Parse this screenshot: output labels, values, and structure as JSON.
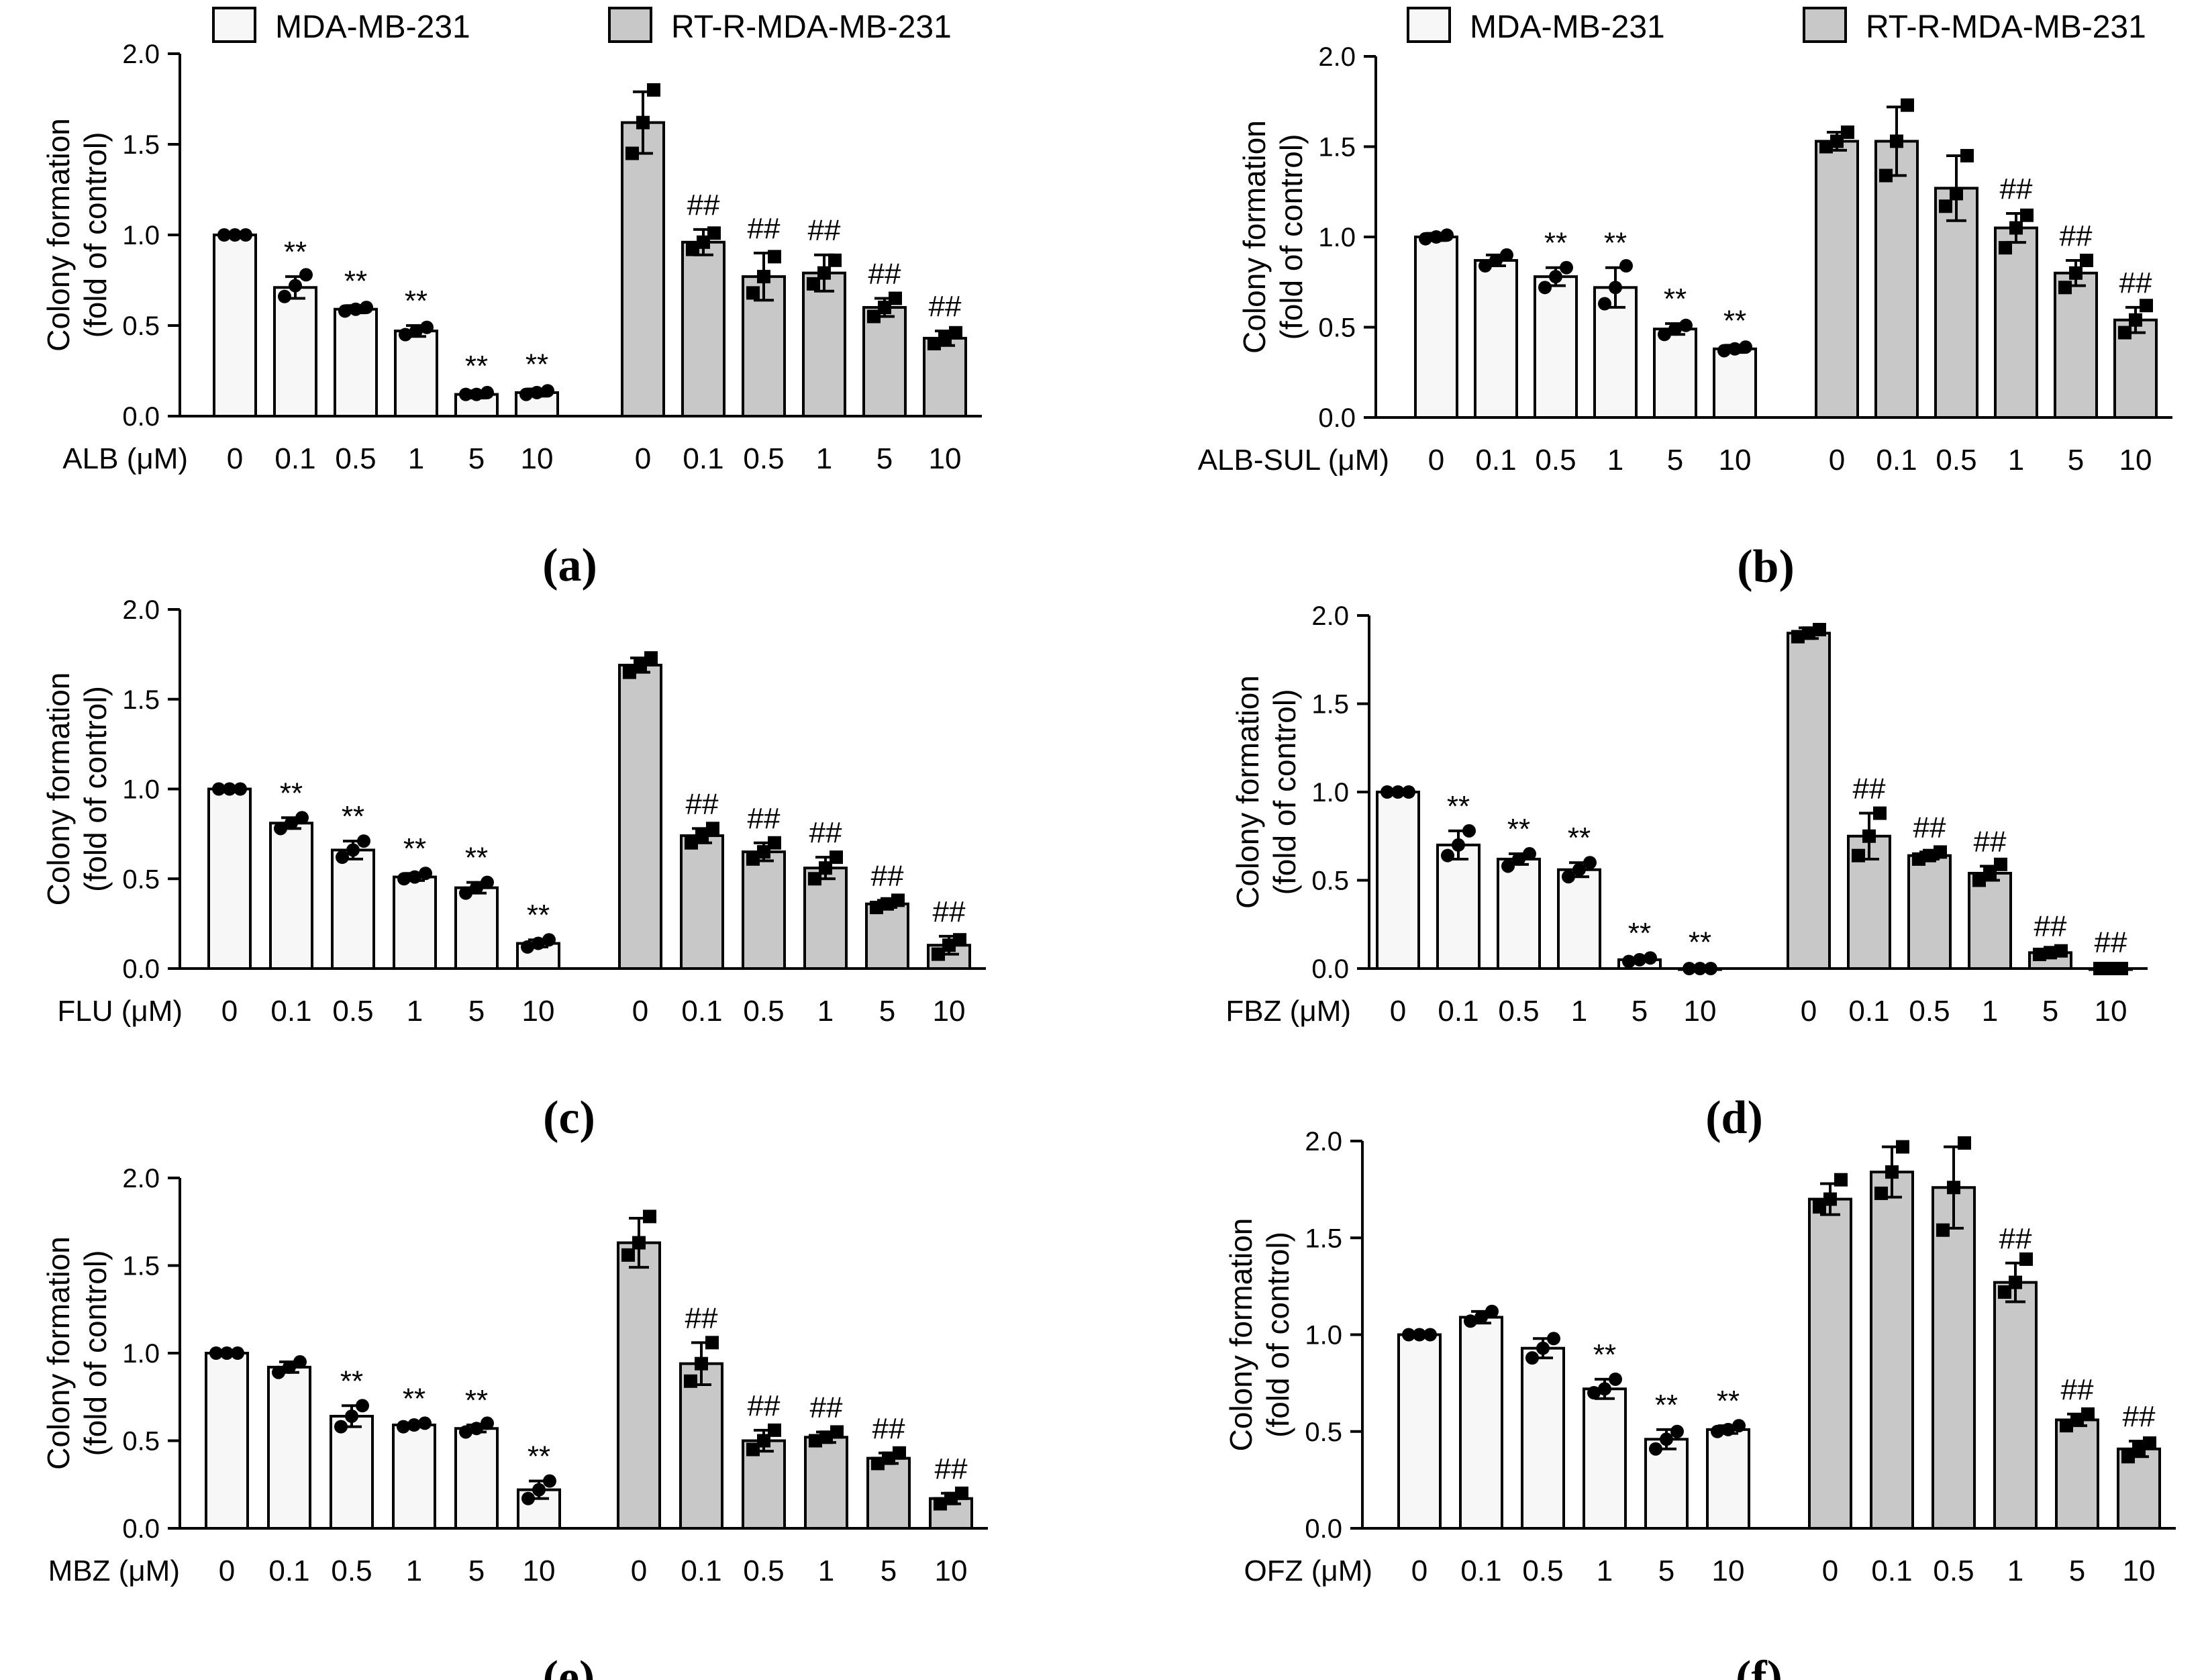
{
  "colors": {
    "mda_fill": "#f7f7f7",
    "rtr_fill": "#c8c8c8",
    "stroke": "#000000"
  },
  "legend": [
    {
      "label": "MDA-MB-231",
      "fill": "#f7f7f7"
    },
    {
      "label": "RT-R-MDA-MB-231",
      "fill": "#c8c8c8"
    }
  ],
  "chart_data": [
    {
      "type": "bar",
      "panel": "(a)",
      "xlabel": "ALB (μM)",
      "ylabel": [
        "Colony formation",
        "(fold of control)"
      ],
      "ylim": [
        0,
        2.0
      ],
      "yticks": [
        "0.0",
        "0.5",
        "1.0",
        "1.5",
        "2.0"
      ],
      "categories": [
        "0",
        "0.1",
        "0.5",
        "1",
        "5",
        "10"
      ],
      "series": [
        {
          "name": "MDA-MB-231",
          "values": [
            1.0,
            0.71,
            0.59,
            0.47,
            0.12,
            0.13
          ],
          "err": [
            0.01,
            0.06,
            0.02,
            0.03,
            0.02,
            0.02
          ],
          "points": [
            [
              1.0,
              1.0,
              1.0
            ],
            [
              0.66,
              0.72,
              0.78
            ],
            [
              0.58,
              0.59,
              0.6
            ],
            [
              0.45,
              0.47,
              0.49
            ],
            [
              0.12,
              0.12,
              0.13
            ],
            [
              0.12,
              0.13,
              0.14
            ]
          ],
          "marks": [
            "",
            "**",
            "**",
            "**",
            "**",
            "**"
          ]
        },
        {
          "name": "RT-R-MDA-MB-231",
          "values": [
            1.62,
            0.96,
            0.77,
            0.79,
            0.6,
            0.43
          ],
          "err": [
            0.17,
            0.07,
            0.13,
            0.1,
            0.05,
            0.04
          ],
          "points": [
            [
              1.45,
              1.62,
              1.8
            ],
            [
              0.92,
              0.96,
              1.01
            ],
            [
              0.68,
              0.77,
              0.88
            ],
            [
              0.73,
              0.79,
              0.86
            ],
            [
              0.55,
              0.6,
              0.65
            ],
            [
              0.4,
              0.43,
              0.46
            ]
          ],
          "marks": [
            "",
            "##",
            "##",
            "##",
            "##",
            "##"
          ]
        }
      ]
    },
    {
      "type": "bar",
      "panel": "(b)",
      "xlabel": "ALB-SUL (μM)",
      "ylabel": [
        "Colony formation",
        "(fold of control)"
      ],
      "ylim": [
        0,
        2.0
      ],
      "yticks": [
        "0.0",
        "0.5",
        "1.0",
        "1.5",
        "2.0"
      ],
      "categories": [
        "0",
        "0.1",
        "0.5",
        "1",
        "5",
        "10"
      ],
      "series": [
        {
          "name": "MDA-MB-231",
          "values": [
            1.0,
            0.87,
            0.78,
            0.72,
            0.49,
            0.38
          ],
          "err": [
            0.02,
            0.03,
            0.05,
            0.11,
            0.03,
            0.02
          ],
          "points": [
            [
              0.99,
              1.0,
              1.01
            ],
            [
              0.84,
              0.87,
              0.9
            ],
            [
              0.72,
              0.78,
              0.83
            ],
            [
              0.63,
              0.72,
              0.84
            ],
            [
              0.46,
              0.49,
              0.51
            ],
            [
              0.37,
              0.38,
              0.39
            ]
          ],
          "marks": [
            "",
            "",
            "**",
            "**",
            "**",
            "**"
          ]
        },
        {
          "name": "RT-R-MDA-MB-231",
          "values": [
            1.53,
            1.53,
            1.27,
            1.05,
            0.8,
            0.54
          ],
          "err": [
            0.05,
            0.19,
            0.18,
            0.08,
            0.07,
            0.07
          ],
          "points": [
            [
              1.5,
              1.53,
              1.58
            ],
            [
              1.34,
              1.53,
              1.73
            ],
            [
              1.17,
              1.24,
              1.45
            ],
            [
              0.94,
              1.05,
              1.12
            ],
            [
              0.72,
              0.8,
              0.87
            ],
            [
              0.47,
              0.54,
              0.62
            ]
          ],
          "marks": [
            "",
            "",
            "",
            "##",
            "##",
            "##"
          ]
        }
      ]
    },
    {
      "type": "bar",
      "panel": "(c)",
      "xlabel": "FLU (μM)",
      "ylabel": [
        "Colony formation",
        "(fold of control)"
      ],
      "ylim": [
        0,
        2.0
      ],
      "yticks": [
        "0.0",
        "0.5",
        "1.0",
        "1.5",
        "2.0"
      ],
      "categories": [
        "0",
        "0.1",
        "0.5",
        "1",
        "5",
        "10"
      ],
      "series": [
        {
          "name": "MDA-MB-231",
          "values": [
            1.0,
            0.81,
            0.66,
            0.51,
            0.45,
            0.14
          ],
          "err": [
            0.01,
            0.03,
            0.05,
            0.02,
            0.03,
            0.02
          ],
          "points": [
            [
              1.0,
              1.0,
              1.0
            ],
            [
              0.78,
              0.81,
              0.84
            ],
            [
              0.62,
              0.66,
              0.71
            ],
            [
              0.5,
              0.51,
              0.53
            ],
            [
              0.42,
              0.45,
              0.48
            ],
            [
              0.12,
              0.14,
              0.16
            ]
          ],
          "marks": [
            "",
            "**",
            "**",
            "**",
            "**",
            "**"
          ]
        },
        {
          "name": "RT-R-MDA-MB-231",
          "values": [
            1.69,
            0.74,
            0.65,
            0.56,
            0.36,
            0.13
          ],
          "err": [
            0.04,
            0.04,
            0.05,
            0.06,
            0.02,
            0.05
          ],
          "points": [
            [
              1.65,
              1.69,
              1.73
            ],
            [
              0.7,
              0.74,
              0.78
            ],
            [
              0.61,
              0.65,
              0.7
            ],
            [
              0.5,
              0.56,
              0.62
            ],
            [
              0.34,
              0.36,
              0.38
            ],
            [
              0.08,
              0.13,
              0.16
            ]
          ],
          "marks": [
            "",
            "##",
            "##",
            "##",
            "##",
            "##"
          ]
        }
      ]
    },
    {
      "type": "bar",
      "panel": "(d)",
      "xlabel": "FBZ (μM)",
      "ylabel": [
        "Colony formation",
        "(fold of control)"
      ],
      "ylim": [
        0,
        2.0
      ],
      "yticks": [
        "0.0",
        "0.5",
        "1.0",
        "1.5",
        "2.0"
      ],
      "categories": [
        "0",
        "0.1",
        "0.5",
        "1",
        "5",
        "10"
      ],
      "series": [
        {
          "name": "MDA-MB-231",
          "values": [
            1.0,
            0.7,
            0.62,
            0.56,
            0.05,
            0.0
          ],
          "err": [
            0.01,
            0.08,
            0.03,
            0.04,
            0.01,
            0.01
          ],
          "points": [
            [
              1.0,
              1.0,
              1.0
            ],
            [
              0.64,
              0.7,
              0.78
            ],
            [
              0.58,
              0.62,
              0.65
            ],
            [
              0.52,
              0.56,
              0.6
            ],
            [
              0.04,
              0.05,
              0.06
            ],
            [
              0.0,
              0.0,
              0.0
            ]
          ],
          "marks": [
            "",
            "**",
            "**",
            "**",
            "**",
            "**"
          ]
        },
        {
          "name": "RT-R-MDA-MB-231",
          "values": [
            1.9,
            0.75,
            0.64,
            0.54,
            0.09,
            0.0
          ],
          "err": [
            0.03,
            0.13,
            0.02,
            0.04,
            0.01,
            0.01
          ],
          "points": [
            [
              1.88,
              1.9,
              1.92
            ],
            [
              0.64,
              0.75,
              0.88
            ],
            [
              0.62,
              0.64,
              0.66
            ],
            [
              0.5,
              0.54,
              0.59
            ],
            [
              0.08,
              0.09,
              0.1
            ],
            [
              0.0,
              0.0,
              0.0
            ]
          ],
          "marks": [
            "",
            "##",
            "##",
            "##",
            "##",
            "##"
          ]
        }
      ]
    },
    {
      "type": "bar",
      "panel": "(e)",
      "xlabel": "MBZ (μM)",
      "ylabel": [
        "Colony formation",
        "(fold of control)"
      ],
      "ylim": [
        0,
        2.0
      ],
      "yticks": [
        "0.0",
        "0.5",
        "1.0",
        "1.5",
        "2.0"
      ],
      "categories": [
        "0",
        "0.1",
        "0.5",
        "1",
        "5",
        "10"
      ],
      "series": [
        {
          "name": "MDA-MB-231",
          "values": [
            1.0,
            0.92,
            0.64,
            0.59,
            0.57,
            0.22
          ],
          "err": [
            0.01,
            0.03,
            0.06,
            0.01,
            0.02,
            0.05
          ],
          "points": [
            [
              1.0,
              1.0,
              1.0
            ],
            [
              0.89,
              0.92,
              0.95
            ],
            [
              0.58,
              0.64,
              0.7
            ],
            [
              0.58,
              0.59,
              0.6
            ],
            [
              0.55,
              0.57,
              0.6
            ],
            [
              0.17,
              0.22,
              0.27
            ]
          ],
          "marks": [
            "",
            "",
            "**",
            "**",
            "**",
            "**"
          ]
        },
        {
          "name": "RT-R-MDA-MB-231",
          "values": [
            1.63,
            0.94,
            0.5,
            0.52,
            0.4,
            0.17
          ],
          "err": [
            0.14,
            0.12,
            0.06,
            0.03,
            0.03,
            0.03
          ],
          "points": [
            [
              1.56,
              1.63,
              1.78
            ],
            [
              0.84,
              0.94,
              1.06
            ],
            [
              0.45,
              0.5,
              0.56
            ],
            [
              0.5,
              0.52,
              0.55
            ],
            [
              0.37,
              0.4,
              0.43
            ],
            [
              0.14,
              0.17,
              0.2
            ]
          ],
          "marks": [
            "",
            "##",
            "##",
            "##",
            "##",
            "##"
          ]
        }
      ]
    },
    {
      "type": "bar",
      "panel": "(f)",
      "xlabel": "OFZ (μM)",
      "ylabel": [
        "Colony formation",
        "(fold of control)"
      ],
      "ylim": [
        0,
        2.0
      ],
      "yticks": [
        "0.0",
        "0.5",
        "1.0",
        "1.5",
        "2.0"
      ],
      "categories": [
        "0",
        "0.1",
        "0.5",
        "1",
        "5",
        "10"
      ],
      "series": [
        {
          "name": "MDA-MB-231",
          "values": [
            1.0,
            1.09,
            0.93,
            0.72,
            0.46,
            0.51
          ],
          "err": [
            0.01,
            0.03,
            0.05,
            0.05,
            0.05,
            0.02
          ],
          "points": [
            [
              1.0,
              1.0,
              1.0
            ],
            [
              1.07,
              1.09,
              1.12
            ],
            [
              0.88,
              0.93,
              0.98
            ],
            [
              0.7,
              0.72,
              0.77
            ],
            [
              0.41,
              0.46,
              0.5
            ],
            [
              0.5,
              0.51,
              0.53
            ]
          ],
          "marks": [
            "",
            "",
            "",
            "**",
            "**",
            "**"
          ]
        },
        {
          "name": "RT-R-MDA-MB-231",
          "values": [
            1.7,
            1.84,
            1.76,
            1.27,
            0.56,
            0.41
          ],
          "err": [
            0.08,
            0.13,
            0.21,
            0.1,
            0.03,
            0.04
          ],
          "points": [
            [
              1.66,
              1.7,
              1.8
            ],
            [
              1.73,
              1.84,
              1.97
            ],
            [
              1.54,
              1.76,
              1.99
            ],
            [
              1.22,
              1.27,
              1.39
            ],
            [
              0.53,
              0.56,
              0.59
            ],
            [
              0.37,
              0.41,
              0.44
            ]
          ],
          "marks": [
            "",
            "",
            "",
            "##",
            "##",
            "##"
          ]
        }
      ]
    }
  ]
}
